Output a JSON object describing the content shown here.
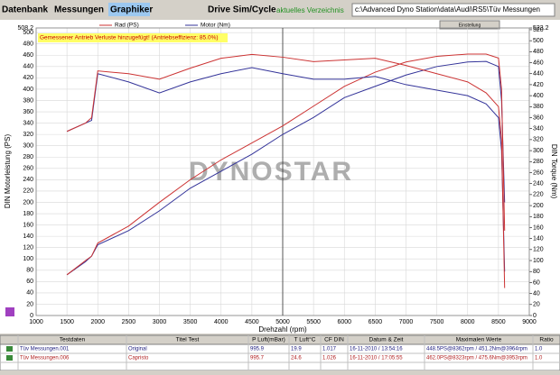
{
  "menu": {
    "items": [
      "Datenbank",
      "Messungen",
      "Graphiker",
      "Drive Sim/Cycle"
    ],
    "active": 2,
    "directory_label": "aktuelles Verzeichnis",
    "directory_path": "c:\\Advanced Dyno Station\\data\\Audi\\RS5\\Tüv Messungen",
    "settings_button": "Einstellung"
  },
  "chart_data": {
    "type": "line",
    "warning": "Gemessener Antrieb Verluste hinzugefügt! (Antriebseffizienz: 85.0%)",
    "watermark": "DYNOSTAR",
    "legend": [
      {
        "label": "Rad (PS)",
        "color": "#cc3333"
      },
      {
        "label": "Motor (Nm)",
        "color": "#333399"
      }
    ],
    "x_label": "Drehzahl (rpm)",
    "y_label": "DIN Motorleistung (PS)",
    "y2_label": "DIN Torque (Nm)",
    "xlim": [
      1000,
      9000
    ],
    "xticks": [
      1000,
      1500,
      2000,
      2500,
      3000,
      3500,
      4000,
      4500,
      5000,
      5500,
      6000,
      6500,
      7000,
      7500,
      8000,
      8500,
      9000
    ],
    "ylim": [
      0,
      508.2
    ],
    "yticks": [
      0,
      20,
      40,
      60,
      80,
      100,
      120,
      140,
      160,
      180,
      200,
      220,
      240,
      260,
      280,
      300,
      320,
      340,
      360,
      380,
      400,
      420,
      440,
      460,
      480,
      500,
      508.2
    ],
    "y2lim": [
      0,
      523.2
    ],
    "y2ticks": [
      0,
      20,
      40,
      60,
      80,
      100,
      120,
      140,
      160,
      180,
      200,
      220,
      240,
      260,
      280,
      300,
      320,
      340,
      360,
      380,
      400,
      420,
      440,
      460,
      480,
      500,
      520,
      523.2
    ],
    "grid": true,
    "cursor_x": 5000,
    "x": [
      1500,
      1800,
      1900,
      2000,
      2500,
      3000,
      3500,
      4000,
      4500,
      5000,
      5500,
      6000,
      6500,
      7000,
      7500,
      8000,
      8300,
      8500,
      8550,
      8600
    ],
    "series": [
      {
        "color": "#333399",
        "axis": "y",
        "values": [
          72,
          95,
          105,
          125,
          150,
          185,
          225,
          255,
          285,
          320,
          350,
          385,
          405,
          425,
          440,
          448,
          449,
          440,
          380,
          200
        ]
      },
      {
        "color": "#cc3333",
        "axis": "y",
        "values": [
          72,
          97,
          105,
          128,
          158,
          200,
          240,
          275,
          305,
          335,
          370,
          405,
          430,
          448,
          458,
          462,
          462,
          455,
          400,
          150
        ]
      },
      {
        "color": "#333399",
        "axis": "y2",
        "values": [
          335,
          350,
          355,
          440,
          425,
          405,
          425,
          440,
          451,
          440,
          430,
          430,
          435,
          420,
          410,
          400,
          385,
          360,
          300,
          80
        ]
      },
      {
        "color": "#cc3333",
        "axis": "y2",
        "values": [
          335,
          350,
          360,
          445,
          440,
          430,
          450,
          468,
          475,
          470,
          462,
          465,
          468,
          455,
          440,
          425,
          405,
          380,
          320,
          50
        ]
      }
    ]
  },
  "table": {
    "header": [
      "Testdaten",
      "Titel Test",
      "P Luft(mBar)",
      "T Luft°C",
      "CF DIN",
      "Datum & Zeit",
      "Maximalen Werte",
      "Ratio"
    ],
    "rows": [
      [
        "Tüv Messungen.001",
        "Original",
        "995.9",
        "19.9",
        "1.017",
        "16-11-2010 / 13:54:16",
        "448.5PS@8362rpm / 451.2Nm@3964rpm",
        "1.0"
      ],
      [
        "Tüv Messungen.006",
        "Capristo",
        "995.7",
        "24.6",
        "1.026",
        "16-11-2010 / 17:05:55",
        "462.0PS@8323rpm / 475.6Nm@3953rpm",
        "1.0"
      ]
    ]
  }
}
